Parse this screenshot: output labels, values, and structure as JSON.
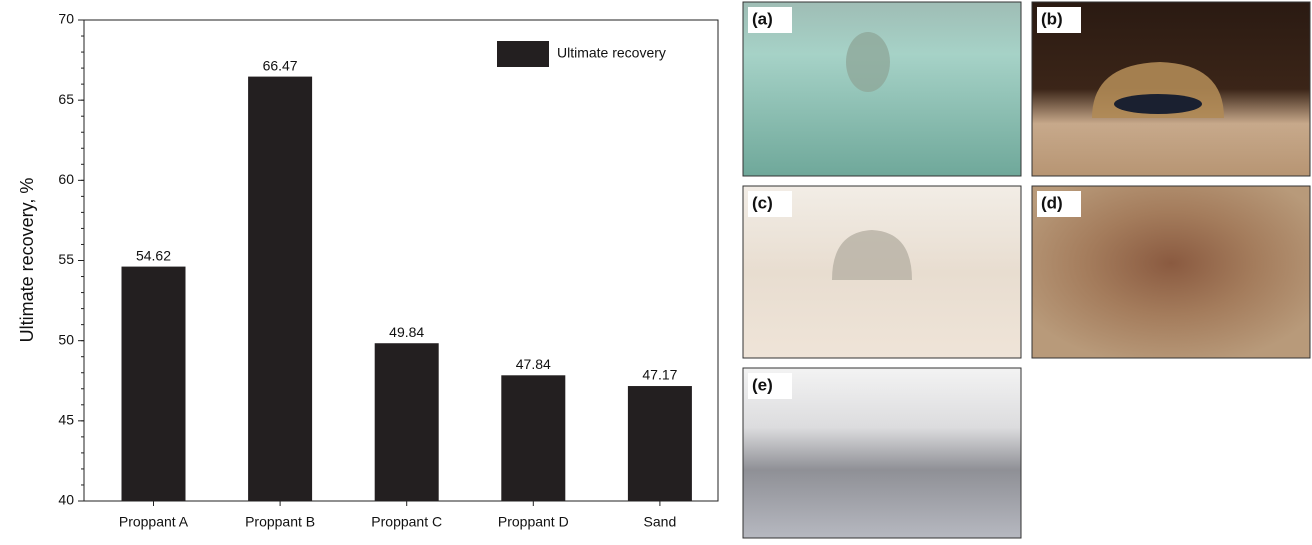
{
  "chart_data": {
    "type": "bar",
    "y_label": "Ultimate recovery, %",
    "categories": [
      "Proppant A",
      "Proppant B",
      "Proppant C",
      "Proppant D",
      "Sand"
    ],
    "series": [
      {
        "name": "Ultimate recovery",
        "color": "#231f20",
        "values": [
          54.62,
          66.47,
          49.84,
          47.84,
          47.17
        ]
      }
    ],
    "ylim": [
      40,
      70
    ],
    "yticks": [
      40,
      45,
      50,
      55,
      60,
      65,
      70
    ],
    "legend": "upper right",
    "data_labels": true
  },
  "photo_panels": [
    "(a)",
    "(b)",
    "(c)",
    "(d)",
    "(e)"
  ]
}
